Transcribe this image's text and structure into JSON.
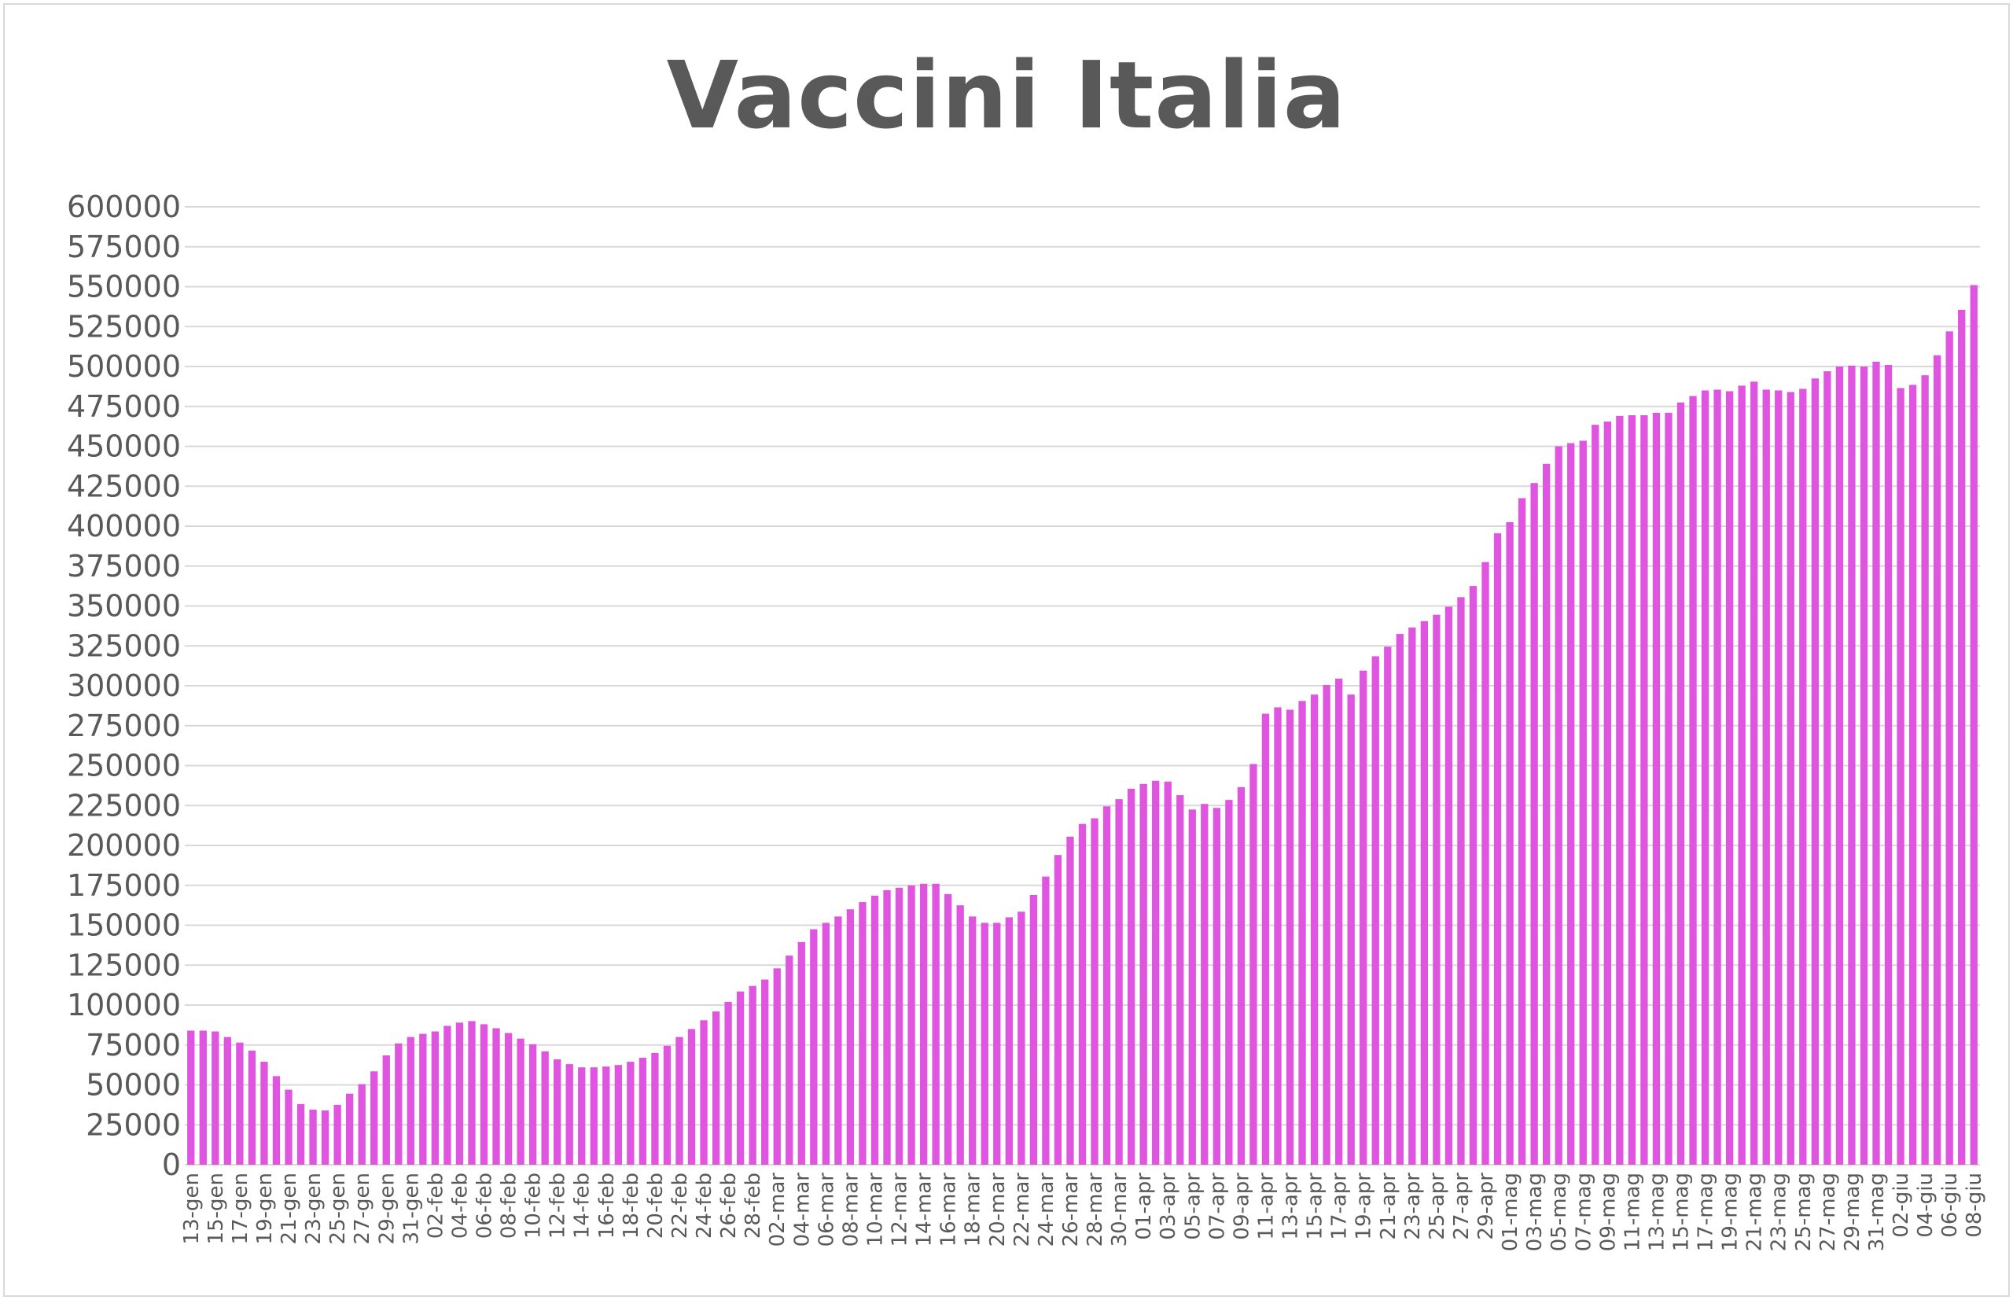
{
  "chart_data": {
    "type": "bar",
    "title": "Vaccini Italia",
    "xlabel": "",
    "ylabel": "",
    "ylim": [
      0,
      600000
    ],
    "yticks": [
      0,
      25000,
      50000,
      75000,
      100000,
      125000,
      150000,
      175000,
      200000,
      225000,
      250000,
      275000,
      300000,
      325000,
      350000,
      375000,
      400000,
      425000,
      450000,
      475000,
      500000,
      525000,
      550000,
      575000,
      600000
    ],
    "grid": true,
    "legend": "none",
    "bar_color": "#e055e0",
    "categories": [
      "13-gen",
      "14-gen",
      "15-gen",
      "16-gen",
      "17-gen",
      "18-gen",
      "19-gen",
      "20-gen",
      "21-gen",
      "22-gen",
      "23-gen",
      "24-gen",
      "25-gen",
      "26-gen",
      "27-gen",
      "28-gen",
      "29-gen",
      "30-gen",
      "31-gen",
      "01-feb",
      "02-feb",
      "03-feb",
      "04-feb",
      "05-feb",
      "06-feb",
      "07-feb",
      "08-feb",
      "09-feb",
      "10-feb",
      "11-feb",
      "12-feb",
      "13-feb",
      "14-feb",
      "15-feb",
      "16-feb",
      "17-feb",
      "18-feb",
      "19-feb",
      "20-feb",
      "21-feb",
      "22-feb",
      "23-feb",
      "24-feb",
      "25-feb",
      "26-feb",
      "27-feb",
      "28-feb",
      "01-mar",
      "02-mar",
      "03-mar",
      "04-mar",
      "05-mar",
      "06-mar",
      "07-mar",
      "08-mar",
      "09-mar",
      "10-mar",
      "11-mar",
      "12-mar",
      "13-mar",
      "14-mar",
      "15-mar",
      "16-mar",
      "17-mar",
      "18-mar",
      "19-mar",
      "20-mar",
      "21-mar",
      "22-mar",
      "23-mar",
      "24-mar",
      "25-mar",
      "26-mar",
      "27-mar",
      "28-mar",
      "29-mar",
      "30-mar",
      "31-mar",
      "01-apr",
      "02-apr",
      "03-apr",
      "04-apr",
      "05-apr",
      "06-apr",
      "07-apr",
      "08-apr",
      "09-apr",
      "10-apr",
      "11-apr",
      "12-apr",
      "13-apr",
      "14-apr",
      "15-apr",
      "16-apr",
      "17-apr",
      "18-apr",
      "19-apr",
      "20-apr",
      "21-apr",
      "22-apr",
      "23-apr",
      "24-apr",
      "25-apr",
      "26-apr",
      "27-apr",
      "28-apr",
      "29-apr",
      "30-apr",
      "01-mag",
      "02-mag",
      "03-mag",
      "04-mag",
      "05-mag",
      "06-mag",
      "07-mag",
      "08-mag",
      "09-mag",
      "10-mag",
      "11-mag",
      "12-mag",
      "13-mag",
      "14-mag",
      "15-mag",
      "16-mag",
      "17-mag",
      "18-mag",
      "19-mag",
      "20-mag",
      "21-mag",
      "22-mag",
      "23-mag",
      "24-mag",
      "25-mag",
      "26-mag",
      "27-mag",
      "28-mag",
      "29-mag",
      "30-mag",
      "31-mag",
      "01-giu",
      "02-giu",
      "03-giu",
      "04-giu",
      "05-giu",
      "06-giu",
      "07-giu",
      "08-giu"
    ],
    "values": [
      84000,
      84000,
      83500,
      80000,
      76500,
      71500,
      64500,
      55500,
      47000,
      38000,
      34500,
      34000,
      37500,
      44500,
      50500,
      58500,
      68500,
      76000,
      80000,
      82000,
      83500,
      87000,
      89000,
      90000,
      88000,
      85500,
      82500,
      79000,
      75500,
      71000,
      66000,
      63000,
      61000,
      61000,
      61500,
      62500,
      64500,
      67000,
      70000,
      74500,
      80000,
      85000,
      90500,
      96000,
      102000,
      108500,
      112000,
      116000,
      123000,
      131000,
      139500,
      147500,
      151500,
      155500,
      160000,
      164500,
      168500,
      172000,
      173500,
      175000,
      176000,
      176000,
      169500,
      162500,
      155500,
      151500,
      151500,
      155000,
      158500,
      169000,
      180500,
      194000,
      205500,
      213500,
      217000,
      224500,
      229000,
      235500,
      238500,
      240500,
      240000,
      231500,
      222500,
      226000,
      223500,
      228500,
      236500,
      251000,
      282500,
      286500,
      285000,
      290500,
      294500,
      300500,
      304500,
      294500,
      309500,
      318500,
      324500,
      332500,
      336500,
      340500,
      344500,
      349500,
      355500,
      362500,
      377500,
      395500,
      402500,
      417500,
      427000,
      439000,
      450000,
      452000,
      453500,
      463500,
      465500,
      469000,
      469500,
      469500,
      471000,
      471000,
      477500,
      481500,
      485000,
      485500,
      484500,
      488000,
      490500,
      485500,
      485000,
      484000,
      486000,
      492500,
      497000,
      500000,
      500500,
      500000,
      503000,
      501000,
      486500,
      488500,
      494500,
      507000,
      522000,
      535500,
      551000
    ]
  }
}
